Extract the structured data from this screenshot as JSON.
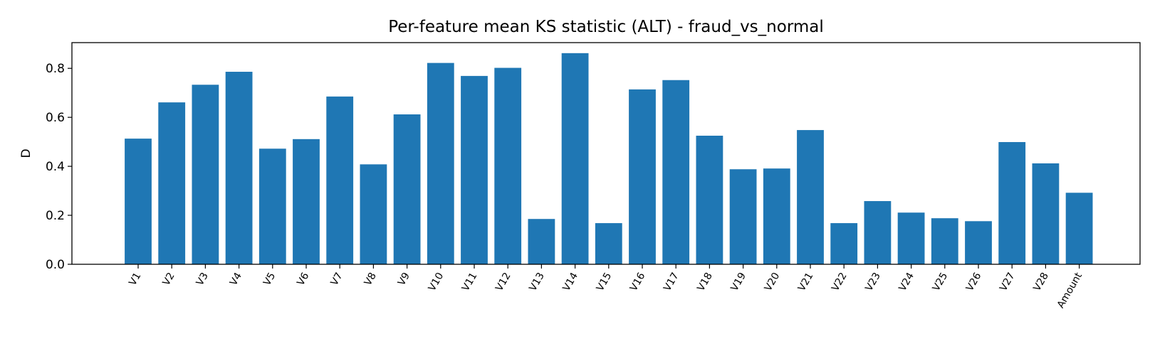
{
  "chart_data": {
    "type": "bar",
    "title": "Per-feature mean KS statistic (ALT) - fraud_vs_normal",
    "xlabel": "",
    "ylabel": "D",
    "ylim": [
      0,
      0.905
    ],
    "yticks": [
      "0.0",
      "0.2",
      "0.4",
      "0.6",
      "0.8"
    ],
    "grid": false,
    "bar_color": "#1f77b4",
    "categories": [
      "V1",
      "V2",
      "V3",
      "V4",
      "V5",
      "V6",
      "V7",
      "V8",
      "V9",
      "V10",
      "V11",
      "V12",
      "V13",
      "V14",
      "V15",
      "V16",
      "V17",
      "V18",
      "V19",
      "V20",
      "V21",
      "V22",
      "V23",
      "V24",
      "V25",
      "V26",
      "V27",
      "V28",
      "Amount"
    ],
    "values": [
      0.513,
      0.661,
      0.733,
      0.786,
      0.472,
      0.511,
      0.685,
      0.408,
      0.612,
      0.822,
      0.769,
      0.802,
      0.185,
      0.862,
      0.168,
      0.714,
      0.752,
      0.525,
      0.388,
      0.391,
      0.548,
      0.168,
      0.258,
      0.211,
      0.188,
      0.176,
      0.499,
      0.412,
      0.292
    ]
  }
}
